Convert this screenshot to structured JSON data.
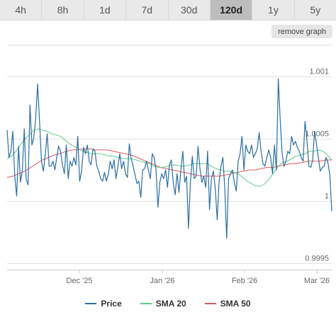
{
  "tabs": [
    {
      "label": "4h",
      "active": false
    },
    {
      "label": "8h",
      "active": false
    },
    {
      "label": "1d",
      "active": false
    },
    {
      "label": "7d",
      "active": false
    },
    {
      "label": "30d",
      "active": false
    },
    {
      "label": "120d",
      "active": true
    },
    {
      "label": "1y",
      "active": false
    },
    {
      "label": "5y",
      "active": false
    }
  ],
  "remove_graph_label": "remove graph",
  "chart_data": {
    "type": "line",
    "x_labels": [
      "Dec '25",
      "Jan '26",
      "Feb '26",
      "Mar '26"
    ],
    "y_ticks": [
      0.9995,
      1,
      1.0005,
      1.001
    ],
    "y_tick_labels": [
      "0.9995",
      "1",
      "1.0005",
      "1.001"
    ],
    "ylim": [
      0.99945,
      1.00125
    ],
    "grid": true,
    "legend_position": "bottom",
    "series": [
      {
        "name": "Price",
        "color": "#2b6ea1",
        "values": [
          1.00057,
          1.00035,
          1.0004,
          1.00056,
          1.0002,
          1.00004,
          1.00044,
          1.00015,
          1.00025,
          1.00058,
          1.00018,
          1.00013,
          1.00077,
          1.00045,
          1.00051,
          1.00067,
          1.00094,
          1.00064,
          1.00032,
          1.00024,
          1.00038,
          1.00054,
          1.00028,
          1.00028,
          1.00032,
          1.00025,
          1.00035,
          1.00044,
          1.0004,
          1.00029,
          1.00022,
          1.00045,
          1.00018,
          1.00032,
          1.00028,
          1.00035,
          1.00029,
          1.00052,
          1.00016,
          1.00024,
          1.00043,
          1.00038,
          1.00045,
          1.00032,
          1.00029,
          1.00042,
          1.0004,
          1.00028,
          1.00024,
          1.00018,
          1.00016,
          1.00023,
          1.00016,
          1.00022,
          1.00032,
          1.00026,
          1.00033,
          1.00018,
          1.00028,
          1.00038,
          1.00026,
          1.00032,
          1.00022,
          1.00019,
          1.00046,
          1.00034,
          1.00028,
          1.00021,
          1.00014,
          1.00016,
          1.00003,
          1.00025,
          1.00026,
          1.00032,
          1.00025,
          1.00018,
          1.00038,
          1.00035,
          1.00025,
          0.99995,
          1.00015,
          1.00022,
          1.00018,
          1.00025,
          1.00011,
          1.00029,
          1.00033,
          1.00015,
          1.00005,
          1.00022,
          1.00007,
          1.00025,
          1.0004,
          1.00015,
          1.0002,
          0.99978,
          1.00015,
          1.00036,
          1.00018,
          1.0002,
          1.00044,
          1.00026,
          1.00015,
          1.0002,
          1.00011,
          1.0004,
          0.99993,
          1.00018,
          1.00024,
          1.0001,
          0.99985,
          1.00015,
          1.00028,
          1.00035,
          1.0001,
          0.9997,
          1.00018,
          1.00022,
          1.00025,
          1.00015,
          1.00008,
          1.00032,
          1.00038,
          1.00052,
          1.00025,
          1.00045,
          1.0004,
          1.00038,
          1.00045,
          1.00035,
          1.00038,
          1.00042,
          1.00055,
          1.0004,
          1.0003,
          1.00028,
          1.00035,
          1.00041,
          1.00035,
          1.00022,
          1.00045,
          1.00025,
          1.00098,
          1.00065,
          1.00038,
          1.00028,
          1.00032,
          1.0004,
          1.00038,
          1.00052,
          1.00045,
          1.00048,
          1.00043,
          1.0004,
          1.00035,
          1.00032,
          1.00064,
          1.00049,
          1.00028,
          1.00027,
          1.00033,
          1.00056,
          1.00046,
          1.00035,
          1.00024,
          1.00027,
          1.00028,
          1.00035,
          1.00031,
          1.00021,
          0.99992
        ]
      },
      {
        "name": "SMA 20",
        "color": "#5cc98a",
        "values": [
          1.00034,
          1.00036,
          1.0004,
          1.00045,
          1.0005,
          1.00053,
          1.00057,
          1.00058,
          1.00057,
          1.00056,
          1.00054,
          1.00053,
          1.00052,
          1.00049,
          1.00046,
          1.00044,
          1.00042,
          1.0004,
          1.00039,
          1.00038,
          1.00038,
          1.00038,
          1.00037,
          1.00036,
          1.00036,
          1.00035,
          1.00034,
          1.00034,
          1.00034,
          1.00033,
          1.00032,
          1.00031,
          1.0003,
          1.00028,
          1.00027,
          1.00027,
          1.00028,
          1.00029,
          1.00029,
          1.00028,
          1.00028,
          1.00029,
          1.0003,
          1.0003,
          1.0003,
          1.0003,
          1.00028,
          1.00026,
          1.00025,
          1.00024,
          1.00024,
          1.00023,
          1.00022,
          1.00019,
          1.00016,
          1.00014,
          1.00012,
          1.00012,
          1.00014,
          1.00018,
          1.00023,
          1.00028,
          1.00031,
          1.00032,
          1.00034,
          1.00036,
          1.00037,
          1.00038,
          1.0004,
          1.0004,
          1.00041,
          1.0004,
          1.00037,
          1.00033
        ]
      },
      {
        "name": "SMA 50",
        "color": "#e05a5a",
        "values": [
          1.00019,
          1.0002,
          1.00022,
          1.00024,
          1.00027,
          1.0003,
          1.00033,
          1.00035,
          1.00037,
          1.00038,
          1.0004,
          1.00041,
          1.00041,
          1.00042,
          1.00042,
          1.00041,
          1.00041,
          1.00041,
          1.0004,
          1.00039,
          1.00038,
          1.00037,
          1.00035,
          1.00033,
          1.00031,
          1.00029,
          1.00027,
          1.00026,
          1.00025,
          1.00024,
          1.00023,
          1.00022,
          1.00021,
          1.0002,
          1.0002,
          1.0002,
          1.0002,
          1.00021,
          1.00022,
          1.00023,
          1.00024,
          1.00025,
          1.00025,
          1.00026,
          1.00027,
          1.00027,
          1.00028,
          1.00029,
          1.0003,
          1.0003,
          1.00031,
          1.00032,
          1.00032,
          1.00032,
          1.00033,
          1.00033
        ]
      }
    ]
  }
}
